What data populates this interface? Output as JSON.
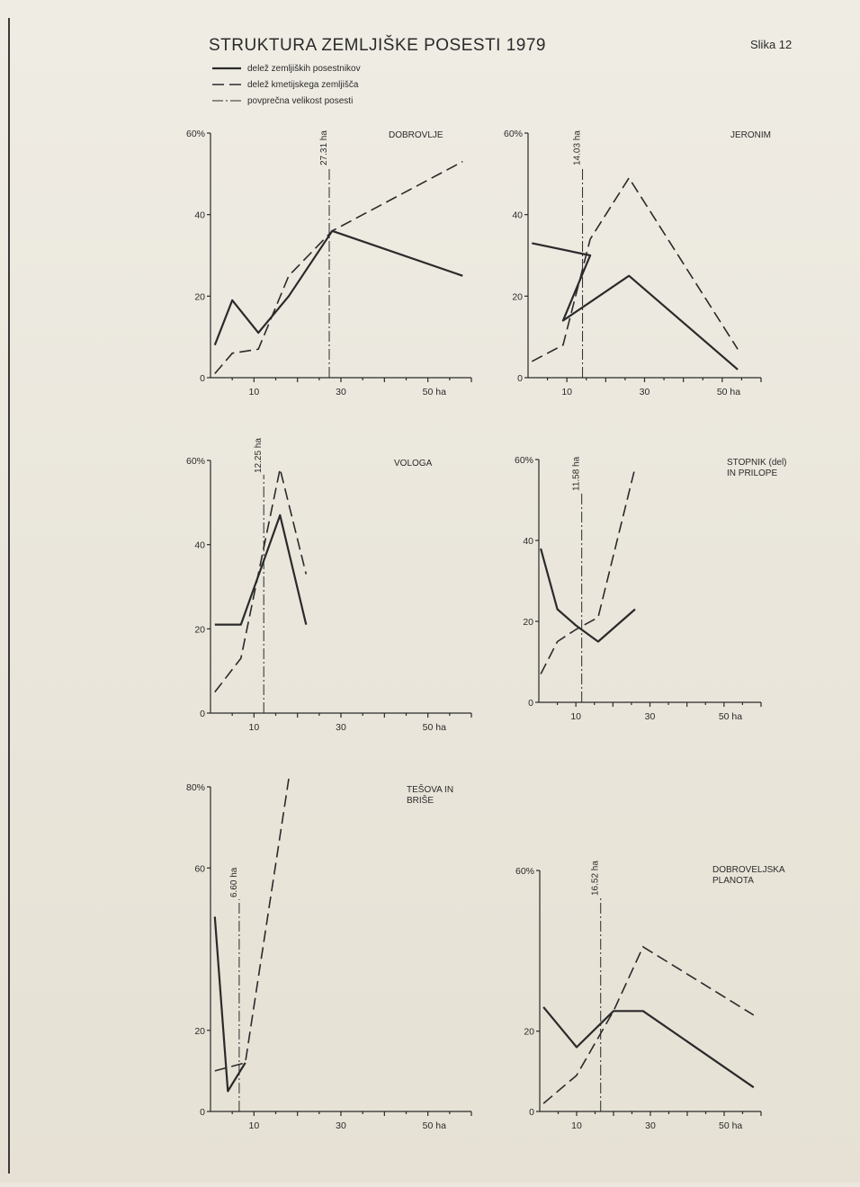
{
  "header": {
    "title": "STRUKTURA ZEMLJIŠKE POSESTI 1979",
    "figure_label": "Slika 12",
    "legend": [
      {
        "style": "solid",
        "label": "delež zemljiških posestnikov"
      },
      {
        "style": "dashed",
        "label": "delež kmetijskega zemljišča"
      },
      {
        "style": "dashdot",
        "label": "povprečna velikost posesti"
      }
    ]
  },
  "chart_data": [
    {
      "type": "line",
      "title": "DOBROVLJE",
      "xlim": [
        0,
        60
      ],
      "ylim": [
        0,
        60
      ],
      "yticks": [
        0,
        20,
        40,
        60
      ],
      "ytick_labels": [
        "0",
        "20",
        "40",
        "60%"
      ],
      "xticks": [
        10,
        30,
        50
      ],
      "xtick_labels": [
        "10",
        "30",
        "50 ha"
      ],
      "avg_size": {
        "x": 27.31,
        "label": "27.31 ha"
      },
      "series": [
        {
          "name": "delež zemljiških posestnikov",
          "style": "solid",
          "x": [
            1,
            5,
            11,
            18,
            28,
            58
          ],
          "y": [
            8,
            19,
            11,
            20,
            36,
            25
          ]
        },
        {
          "name": "delež kmetijskega zemljišča",
          "style": "dashed",
          "x": [
            1,
            5,
            11,
            18,
            28,
            58
          ],
          "y": [
            1,
            6,
            7,
            25,
            36,
            53
          ]
        }
      ]
    },
    {
      "type": "line",
      "title": "JERONIM",
      "xlim": [
        0,
        60
      ],
      "ylim": [
        0,
        60
      ],
      "yticks": [
        0,
        20,
        40,
        60
      ],
      "ytick_labels": [
        "0",
        "20",
        "40",
        "60%"
      ],
      "xticks": [
        10,
        30,
        50
      ],
      "xtick_labels": [
        "10",
        "30",
        "50 ha"
      ],
      "avg_size": {
        "x": 14.03,
        "label": "14.03 ha"
      },
      "series": [
        {
          "name": "delež zemljiških posestnikov",
          "style": "solid",
          "x": [
            1,
            16,
            9,
            26,
            54
          ],
          "y": [
            33,
            30,
            14,
            25,
            2
          ]
        },
        {
          "name": "delež kmetijskega zemljišča",
          "style": "dashed",
          "x": [
            1,
            9,
            16,
            26,
            54
          ],
          "y": [
            4,
            8,
            34,
            49,
            7
          ]
        }
      ]
    },
    {
      "type": "line",
      "title": "VOLOGA",
      "xlim": [
        0,
        60
      ],
      "ylim": [
        0,
        60
      ],
      "yticks": [
        0,
        20,
        40,
        60
      ],
      "ytick_labels": [
        "0",
        "20",
        "40",
        "60%"
      ],
      "xticks": [
        10,
        30,
        50
      ],
      "xtick_labels": [
        "10",
        "30",
        "50 ha"
      ],
      "avg_size": {
        "x": 12.25,
        "label": "12.25 ha"
      },
      "series": [
        {
          "name": "delež zemljiških posestnikov",
          "style": "solid",
          "x": [
            1,
            7,
            16,
            22
          ],
          "y": [
            21,
            21,
            47,
            21
          ]
        },
        {
          "name": "delež kmetijskega zemljišča",
          "style": "dashed",
          "x": [
            1,
            7,
            16,
            22
          ],
          "y": [
            5,
            13,
            58,
            33
          ]
        }
      ]
    },
    {
      "type": "line",
      "title": "STOPNIK (del) IN PRILOPE",
      "xlim": [
        0,
        60
      ],
      "ylim": [
        0,
        60
      ],
      "yticks": [
        0,
        20,
        40,
        60
      ],
      "ytick_labels": [
        "0",
        "20",
        "40",
        "60%"
      ],
      "xticks": [
        10,
        30,
        50
      ],
      "xtick_labels": [
        "10",
        "30",
        "50 ha"
      ],
      "avg_size": {
        "x": 11.58,
        "label": "11.58 ha"
      },
      "series": [
        {
          "name": "delež zemljiških posestnikov",
          "style": "solid",
          "x": [
            0.5,
            5,
            10,
            16,
            26
          ],
          "y": [
            38,
            23,
            19,
            15,
            23
          ]
        },
        {
          "name": "delež kmetijskega zemljišča",
          "style": "dashed",
          "x": [
            0.5,
            5,
            10,
            16,
            26
          ],
          "y": [
            7,
            15,
            18,
            21,
            58
          ]
        }
      ]
    },
    {
      "type": "line",
      "title": "TEŠOVA IN BRIŠE",
      "xlim": [
        0,
        60
      ],
      "ylim": [
        0,
        80
      ],
      "yticks": [
        0,
        20,
        60,
        80
      ],
      "ytick_labels": [
        "0",
        "20",
        "60",
        "80%"
      ],
      "xticks": [
        10,
        30,
        50
      ],
      "xtick_labels": [
        "10",
        "30",
        "50 ha"
      ],
      "avg_size": {
        "x": 6.6,
        "label": "6.60 ha"
      },
      "series": [
        {
          "name": "delež zemljiških posestnikov",
          "style": "solid",
          "x": [
            1,
            4,
            8
          ],
          "y": [
            48,
            5,
            12
          ]
        },
        {
          "name": "delež kmetijskega zemljišča",
          "style": "dashed",
          "x": [
            1,
            8,
            18
          ],
          "y": [
            10,
            12,
            82
          ]
        }
      ]
    },
    {
      "type": "line",
      "title": "DOBROVELJSKA PLANOTA",
      "xlim": [
        0,
        60
      ],
      "ylim": [
        0,
        60
      ],
      "yticks": [
        0,
        20,
        60
      ],
      "ytick_labels": [
        "0",
        "20",
        "60%"
      ],
      "xticks": [
        10,
        30,
        50
      ],
      "xtick_labels": [
        "10",
        "30",
        "50 ha"
      ],
      "avg_size": {
        "x": 16.52,
        "label": "16.52 ha"
      },
      "series": [
        {
          "name": "delež zemljiških posestnikov",
          "style": "solid",
          "x": [
            1,
            10,
            20,
            28,
            58
          ],
          "y": [
            26,
            16,
            25,
            25,
            6
          ]
        },
        {
          "name": "delež kmetijskega zemljišča",
          "style": "dashed",
          "x": [
            1,
            10,
            20,
            28,
            58
          ],
          "y": [
            2,
            9,
            25,
            41,
            24
          ]
        }
      ]
    }
  ]
}
